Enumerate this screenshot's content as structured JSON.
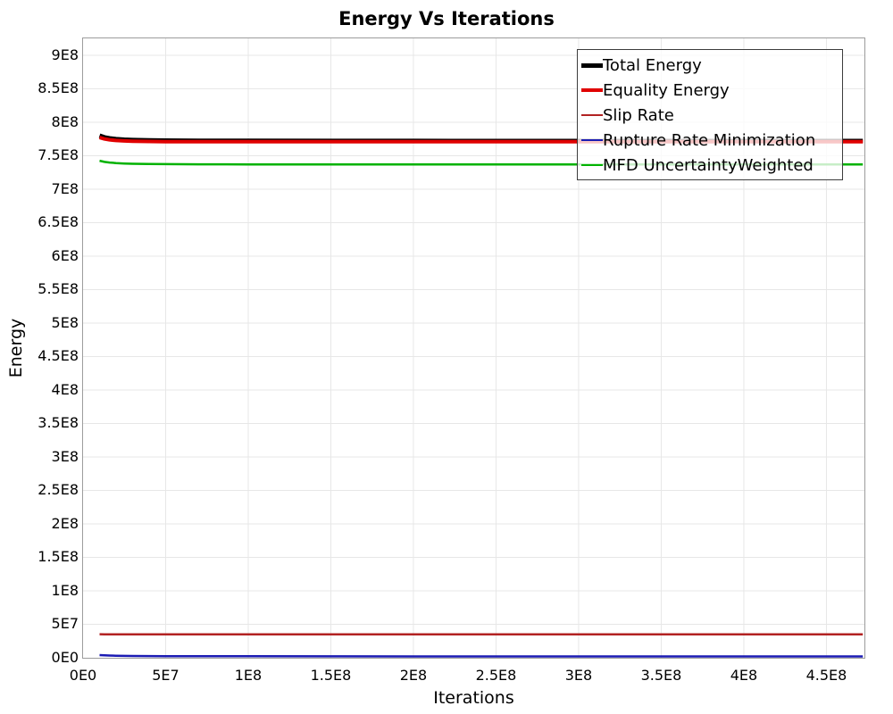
{
  "chart_data": {
    "type": "line",
    "title": "Energy Vs Iterations",
    "xlabel": "Iterations",
    "ylabel": "Energy",
    "xlim": [
      0,
      473000000.0
    ],
    "ylim": [
      0,
      925330000.0
    ],
    "grid": true,
    "grid_color": "#e7e7e7",
    "axis_border_color": "#9c9c9c",
    "legend_position": "top-right",
    "legend_border_color": "#3c3c3c",
    "xticks": [
      0,
      50000000.0,
      100000000.0,
      150000000.0,
      200000000.0,
      250000000.0,
      300000000.0,
      350000000.0,
      400000000.0,
      450000000.0
    ],
    "xtick_labels": [
      "0E0",
      "5E7",
      "1E8",
      "1.5E8",
      "2E8",
      "2.5E8",
      "3E8",
      "3.5E8",
      "4E8",
      "4.5E8"
    ],
    "yticks": [
      0,
      50000000.0,
      100000000.0,
      150000000.0,
      200000000.0,
      250000000.0,
      300000000.0,
      350000000.0,
      400000000.0,
      450000000.0,
      500000000.0,
      550000000.0,
      600000000.0,
      650000000.0,
      700000000.0,
      750000000.0,
      800000000.0,
      850000000.0,
      900000000.0
    ],
    "ytick_labels": [
      "0E0",
      "5E7",
      "1E8",
      "1.5E8",
      "2E8",
      "2.5E8",
      "3E8",
      "3.5E8",
      "4E8",
      "4.5E8",
      "5E8",
      "5.5E8",
      "6E8",
      "6.5E8",
      "7E8",
      "7.5E8",
      "8E8",
      "8.5E8",
      "9E8"
    ],
    "x_shared": [
      10000000.0,
      13000000.0,
      16000000.0,
      20000000.0,
      25000000.0,
      30000000.0,
      40000000.0,
      50000000.0,
      70000000.0,
      100000000.0,
      150000000.0,
      200000000.0,
      250000000.0,
      300000000.0,
      350000000.0,
      400000000.0,
      450000000.0,
      472000000.0
    ],
    "series": [
      {
        "name": "Total Energy",
        "color": "#000000",
        "line_width": 5,
        "x": [
          10000000.0,
          13000000.0,
          16000000.0,
          20000000.0,
          25000000.0,
          30000000.0,
          40000000.0,
          50000000.0,
          70000000.0,
          100000000.0,
          150000000.0,
          200000000.0,
          250000000.0,
          300000000.0,
          350000000.0,
          400000000.0,
          450000000.0,
          472000000.0
        ],
        "y": [
          780000000.0,
          777500000.0,
          776000000.0,
          774800000.0,
          774000000.0,
          773500000.0,
          772900000.0,
          772600000.0,
          772300000.0,
          772200000.0,
          772100000.0,
          772100000.0,
          772000000.0,
          772000000.0,
          772000000.0,
          772000000.0,
          772000000.0,
          772000000.0
        ]
      },
      {
        "name": "Equality Energy",
        "color": "#e00000",
        "line_width": 4,
        "x": [
          10000000.0,
          13000000.0,
          16000000.0,
          20000000.0,
          25000000.0,
          30000000.0,
          40000000.0,
          50000000.0,
          70000000.0,
          100000000.0,
          150000000.0,
          200000000.0,
          250000000.0,
          300000000.0,
          350000000.0,
          400000000.0,
          450000000.0,
          472000000.0
        ],
        "y": [
          777200000.0,
          775000000.0,
          773800000.0,
          772800000.0,
          772100000.0,
          771700000.0,
          771300000.0,
          771100000.0,
          771000000.0,
          771000000.0,
          770900000.0,
          770900000.0,
          770900000.0,
          770900000.0,
          770900000.0,
          770900000.0,
          770900000.0,
          770900000.0
        ]
      },
      {
        "name": "Slip Rate",
        "color": "#b22222",
        "line_width": 2.5,
        "x": [
          10000000.0,
          13000000.0,
          16000000.0,
          20000000.0,
          25000000.0,
          30000000.0,
          40000000.0,
          50000000.0,
          70000000.0,
          100000000.0,
          150000000.0,
          200000000.0,
          250000000.0,
          300000000.0,
          350000000.0,
          400000000.0,
          450000000.0,
          472000000.0
        ],
        "y": [
          35200000.0,
          35100000.0,
          35100000.0,
          35000000.0,
          35000000.0,
          35000000.0,
          35000000.0,
          35000000.0,
          35000000.0,
          35000000.0,
          35000000.0,
          35000000.0,
          35000000.0,
          35000000.0,
          35000000.0,
          35000000.0,
          35000000.0,
          35000000.0
        ]
      },
      {
        "name": "Rupture Rate Minimization",
        "color": "#1b1bb3",
        "line_width": 2.5,
        "x": [
          10000000.0,
          13000000.0,
          16000000.0,
          20000000.0,
          25000000.0,
          30000000.0,
          40000000.0,
          50000000.0,
          70000000.0,
          100000000.0,
          150000000.0,
          200000000.0,
          250000000.0,
          300000000.0,
          350000000.0,
          400000000.0,
          450000000.0,
          472000000.0
        ],
        "y": [
          4000000.0,
          3600000.0,
          3300000.0,
          3000000.0,
          2800000.0,
          2700000.0,
          2500000.0,
          2400000.0,
          2300000.0,
          2200000.0,
          2100000.0,
          2000000.0,
          2000000.0,
          2000000.0,
          2000000.0,
          2000000.0,
          2000000.0,
          2000000.0
        ]
      },
      {
        "name": "MFD UncertaintyWeighted",
        "color": "#00b200",
        "line_width": 2.5,
        "x": [
          10000000.0,
          13000000.0,
          16000000.0,
          20000000.0,
          25000000.0,
          30000000.0,
          40000000.0,
          50000000.0,
          70000000.0,
          100000000.0,
          150000000.0,
          200000000.0,
          250000000.0,
          300000000.0,
          350000000.0,
          400000000.0,
          450000000.0,
          472000000.0
        ],
        "y": [
          742500000.0,
          740800000.0,
          739800000.0,
          739000000.0,
          738400000.0,
          738000000.0,
          737600000.0,
          737400000.0,
          737200000.0,
          737100000.0,
          737000000.0,
          737000000.0,
          736900000.0,
          736900000.0,
          736900000.0,
          736900000.0,
          736900000.0,
          736900000.0
        ]
      }
    ]
  }
}
